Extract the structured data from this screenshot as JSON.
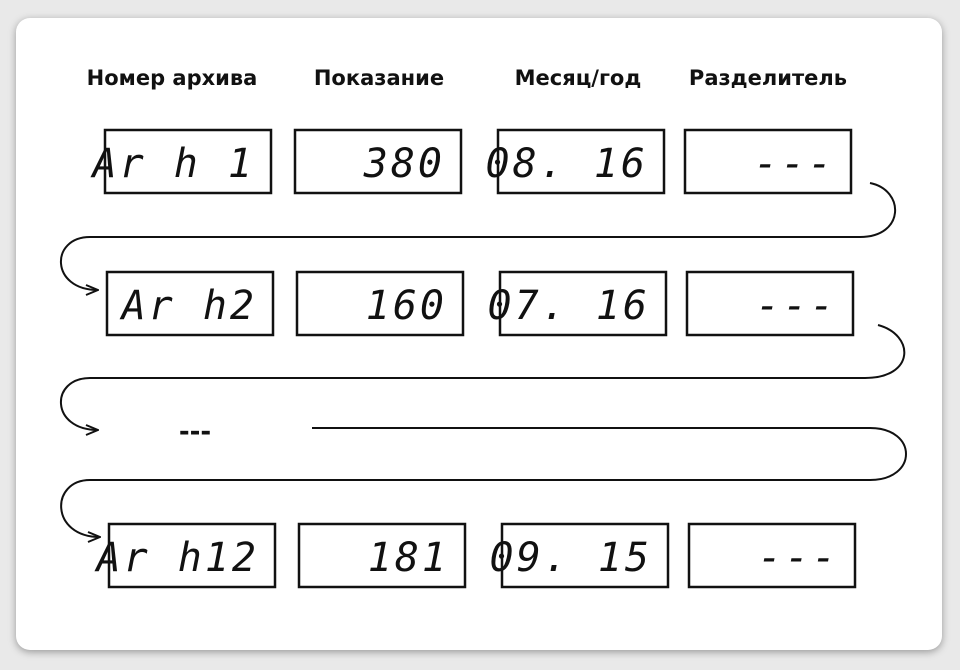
{
  "headers": [
    "Номер архива",
    "Показание",
    "Месяц/год",
    "Разделитель"
  ],
  "rows": [
    [
      "Ar h 1",
      "380",
      "08. 16",
      "---"
    ],
    [
      "Ar h2",
      "160",
      "07. 16",
      "---"
    ],
    [
      "Ar h12",
      "181",
      "09. 15",
      "---"
    ]
  ],
  "ellipsis": "---"
}
